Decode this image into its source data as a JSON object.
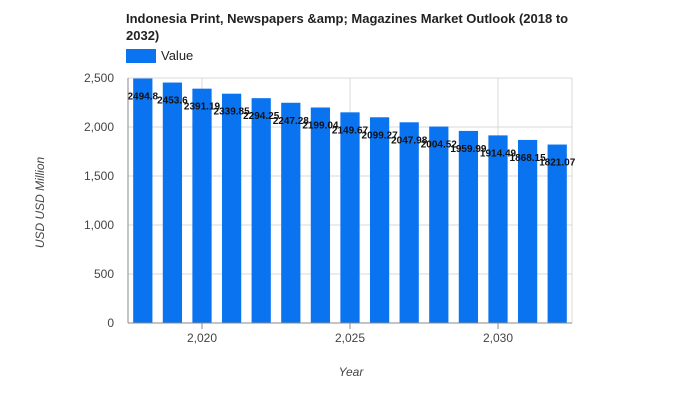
{
  "chart_data": {
    "type": "bar",
    "title": "Indonesia Print, Newspapers &amp; Magazines Market Outlook (2018 to 2032)",
    "xlabel": "Year",
    "ylabel": "USD USD Million",
    "legend": {
      "position": "top-left",
      "entries": [
        "Value"
      ]
    },
    "series": [
      {
        "name": "Value",
        "color": "#0a73f0",
        "x": [
          2018,
          2019,
          2020,
          2021,
          2022,
          2023,
          2024,
          2025,
          2026,
          2027,
          2028,
          2029,
          2030,
          2031,
          2032
        ],
        "values": [
          2494.8,
          2453.6,
          2391.19,
          2339.85,
          2294.25,
          2247.28,
          2199.04,
          2149.67,
          2099.27,
          2047.98,
          2004.52,
          1959.99,
          1914.49,
          1868.15,
          1821.07
        ],
        "data_labels": [
          "2494.8",
          "2453.6",
          "2391.19",
          "2339.85",
          "2294.25",
          "2247.28",
          "2199.04",
          "2149.67",
          "2099.27",
          "2047.98",
          "2004.52",
          "1959.99",
          "1914.49",
          "1868.15",
          "1821.07"
        ]
      }
    ],
    "ylim": [
      0,
      2500
    ],
    "yticks": [
      0,
      500,
      1000,
      1500,
      2000,
      2500
    ],
    "ytick_labels": [
      "0",
      "500",
      "1,000",
      "1,500",
      "2,000",
      "2,500"
    ],
    "xticks": [
      2020,
      2025,
      2030
    ],
    "xtick_labels": [
      "2,020",
      "2,025",
      "2,030"
    ],
    "grid": true
  }
}
